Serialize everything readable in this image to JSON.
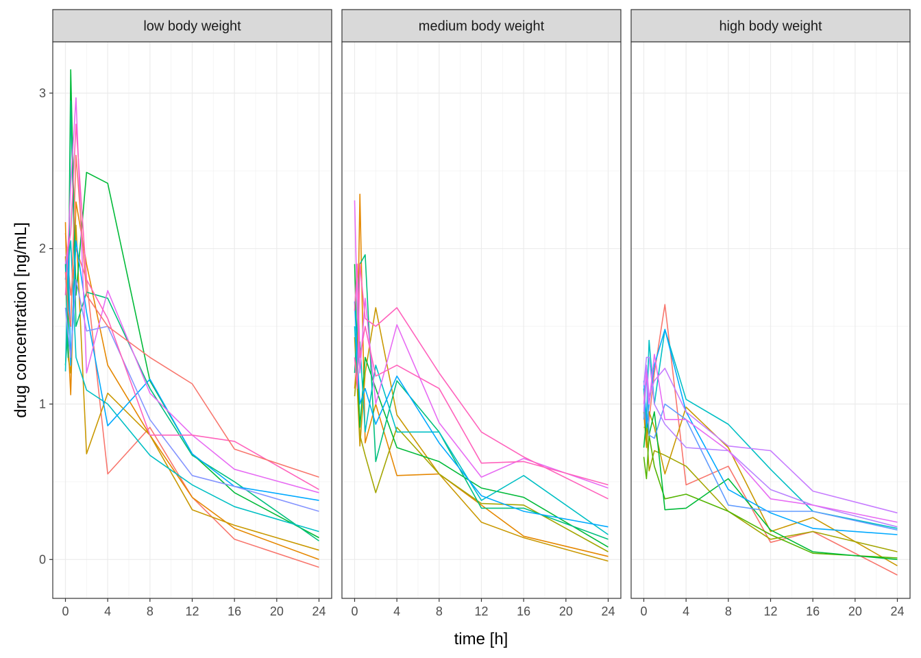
{
  "chart_data": {
    "type": "line",
    "xlabel": "time [h]",
    "ylabel": "drug concentration [ng/mL]",
    "xlim": [
      -1.2,
      25.2
    ],
    "ylim": [
      -0.25,
      3.33
    ],
    "x_ticks": [
      0,
      4,
      8,
      12,
      16,
      20,
      24
    ],
    "y_ticks": [
      0,
      1,
      2,
      3
    ],
    "grid": true,
    "legend": "none",
    "panels": [
      {
        "title": "low body weight",
        "series": [
          {
            "color": "#F8766D",
            "x": [
              0,
              0.25,
              0.5,
              1,
              2,
              4,
              8,
              12,
              16,
              24
            ],
            "y": [
              2.1,
              1.9,
              1.7,
              2.0,
              1.8,
              0.55,
              0.85,
              0.4,
              0.13,
              -0.05
            ]
          },
          {
            "color": "#E58700",
            "x": [
              0,
              0.25,
              0.5,
              1,
              2,
              4,
              8,
              12,
              16,
              24
            ],
            "y": [
              2.17,
              1.4,
              1.06,
              2.3,
              1.9,
              1.25,
              0.8,
              0.4,
              0.2,
              0.0
            ]
          },
          {
            "color": "#C99800",
            "x": [
              0,
              0.25,
              0.5,
              1,
              2,
              4,
              8,
              12,
              16,
              24
            ],
            "y": [
              1.95,
              1.3,
              1.2,
              2.15,
              0.68,
              1.07,
              0.8,
              0.32,
              0.22,
              0.06
            ]
          },
          {
            "color": "#00BA38",
            "x": [
              0,
              0.25,
              0.5,
              1,
              2,
              4,
              8,
              12,
              16,
              24
            ],
            "y": [
              1.25,
              1.5,
              3.15,
              1.7,
              2.49,
              2.42,
              1.15,
              0.68,
              0.43,
              0.14
            ]
          },
          {
            "color": "#00BF7D",
            "x": [
              0,
              0.25,
              0.5,
              1,
              2,
              4,
              8,
              12,
              16,
              24
            ],
            "y": [
              1.9,
              1.3,
              2.95,
              1.5,
              1.72,
              1.68,
              1.1,
              0.67,
              0.5,
              0.12
            ]
          },
          {
            "color": "#00BFC4",
            "x": [
              0,
              0.25,
              0.5,
              1,
              2,
              4,
              8,
              12,
              16,
              24
            ],
            "y": [
              1.21,
              1.9,
              2.05,
              1.3,
              1.09,
              1.0,
              0.67,
              0.48,
              0.34,
              0.18
            ]
          },
          {
            "color": "#00A9FF",
            "x": [
              0,
              0.25,
              0.5,
              1,
              2,
              4,
              8,
              12,
              16,
              24
            ],
            "y": [
              1.8,
              2.02,
              1.25,
              2.05,
              1.59,
              0.86,
              1.16,
              0.68,
              0.47,
              0.38
            ]
          },
          {
            "color": "#8494FF",
            "x": [
              0,
              0.25,
              0.5,
              1,
              2,
              4,
              8,
              12,
              16,
              24
            ],
            "y": [
              1.62,
              1.45,
              1.3,
              1.8,
              1.47,
              1.5,
              0.9,
              0.54,
              0.47,
              0.31
            ]
          },
          {
            "color": "#E76BF3",
            "x": [
              0,
              0.25,
              0.5,
              1,
              2,
              4,
              8,
              12,
              16,
              24
            ],
            "y": [
              1.9,
              2.02,
              2.42,
              2.97,
              1.2,
              1.73,
              1.07,
              0.8,
              0.58,
              0.43
            ]
          },
          {
            "color": "#FF62BC",
            "x": [
              0,
              0.25,
              0.5,
              1,
              2,
              4,
              8,
              12,
              16,
              24
            ],
            "y": [
              1.7,
              2.0,
              2.1,
              2.8,
              1.8,
              1.55,
              0.8,
              0.8,
              0.76,
              0.45
            ]
          },
          {
            "color": "#F8766D",
            "x": [
              0,
              0.25,
              0.5,
              1,
              2,
              4,
              8,
              12,
              16,
              24
            ],
            "y": [
              1.85,
              1.6,
              1.5,
              2.6,
              1.7,
              1.5,
              1.3,
              1.13,
              0.71,
              0.53
            ]
          }
        ]
      },
      {
        "title": "medium body weight",
        "series": [
          {
            "color": "#E58700",
            "x": [
              0,
              0.25,
              0.5,
              1,
              2,
              4,
              8,
              12,
              16,
              24
            ],
            "y": [
              1.1,
              1.3,
              2.35,
              0.75,
              1.0,
              0.54,
              0.55,
              0.35,
              0.15,
              0.02
            ]
          },
          {
            "color": "#C99800",
            "x": [
              0,
              0.25,
              0.5,
              1,
              2,
              4,
              8,
              12,
              16,
              24
            ],
            "y": [
              1.43,
              1.1,
              0.73,
              1.2,
              1.62,
              0.93,
              0.55,
              0.24,
              0.14,
              -0.01
            ]
          },
          {
            "color": "#A3A500",
            "x": [
              0,
              0.25,
              0.5,
              1,
              2,
              4,
              8,
              12,
              16,
              24
            ],
            "y": [
              1.05,
              1.25,
              0.8,
              0.67,
              0.43,
              0.85,
              0.55,
              0.36,
              0.35,
              0.05
            ]
          },
          {
            "color": "#00BA38",
            "x": [
              0,
              0.25,
              0.5,
              1,
              2,
              4,
              8,
              12,
              16,
              24
            ],
            "y": [
              1.9,
              1.3,
              0.85,
              1.3,
              1.1,
              0.72,
              0.63,
              0.46,
              0.4,
              0.08
            ]
          },
          {
            "color": "#00BF7D",
            "x": [
              0,
              0.25,
              0.5,
              1,
              2,
              4,
              8,
              12,
              16,
              24
            ],
            "y": [
              1.2,
              1.5,
              1.9,
              1.96,
              0.63,
              1.15,
              0.82,
              0.33,
              0.33,
              0.13
            ]
          },
          {
            "color": "#00BFC4",
            "x": [
              0,
              0.25,
              0.5,
              1,
              2,
              4,
              8,
              12,
              16,
              24
            ],
            "y": [
              1.5,
              1.2,
              1.4,
              0.82,
              1.25,
              0.82,
              0.82,
              0.38,
              0.54,
              0.16
            ]
          },
          {
            "color": "#00A9FF",
            "x": [
              0,
              0.25,
              0.5,
              1,
              2,
              4,
              8,
              12,
              16,
              24
            ],
            "y": [
              1.66,
              1.3,
              1.0,
              1.1,
              0.87,
              1.18,
              0.75,
              0.41,
              0.31,
              0.21
            ]
          },
          {
            "color": "#E76BF3",
            "x": [
              0,
              0.25,
              0.5,
              1,
              2,
              4,
              8,
              12,
              16,
              24
            ],
            "y": [
              2.31,
              1.6,
              1.2,
              1.68,
              1.0,
              1.51,
              0.88,
              0.53,
              0.65,
              0.46
            ]
          },
          {
            "color": "#FF62BC",
            "x": [
              0,
              0.25,
              0.5,
              1,
              2,
              4,
              8,
              12,
              16,
              24
            ],
            "y": [
              1.6,
              1.9,
              1.3,
              1.5,
              1.18,
              1.25,
              1.1,
              0.62,
              0.63,
              0.48
            ]
          },
          {
            "color": "#FF62BC",
            "x": [
              0,
              0.25,
              0.5,
              1,
              2,
              4,
              8,
              12,
              16,
              24
            ],
            "y": [
              1.3,
              1.1,
              1.9,
              1.55,
              1.5,
              1.62,
              1.2,
              0.82,
              0.66,
              0.39
            ]
          }
        ]
      },
      {
        "title": "high body weight",
        "series": [
          {
            "color": "#F8766D",
            "x": [
              0,
              0.25,
              0.5,
              1,
              2,
              4,
              8,
              12,
              16,
              24
            ],
            "y": [
              1.1,
              0.75,
              0.9,
              1.2,
              1.64,
              0.48,
              0.6,
              0.11,
              0.18,
              -0.1
            ]
          },
          {
            "color": "#C99800",
            "x": [
              0,
              0.25,
              0.5,
              1,
              2,
              4,
              8,
              12,
              16,
              24
            ],
            "y": [
              0.95,
              0.72,
              0.95,
              0.85,
              0.55,
              0.98,
              0.72,
              0.18,
              0.27,
              -0.04
            ]
          },
          {
            "color": "#A3A500",
            "x": [
              0,
              0.25,
              0.5,
              1,
              2,
              4,
              8,
              12,
              16,
              24
            ],
            "y": [
              0.85,
              0.85,
              0.57,
              0.7,
              0.67,
              0.6,
              0.31,
              0.13,
              0.18,
              0.05
            ]
          },
          {
            "color": "#53B400",
            "x": [
              0,
              0.25,
              0.5,
              1,
              2,
              4,
              8,
              12,
              16,
              24
            ],
            "y": [
              0.66,
              0.52,
              0.8,
              0.6,
              0.39,
              0.42,
              0.31,
              0.16,
              0.04,
              0.01
            ]
          },
          {
            "color": "#00BA38",
            "x": [
              0,
              0.25,
              0.5,
              1,
              2,
              4,
              8,
              12,
              16,
              24
            ],
            "y": [
              0.72,
              0.9,
              0.8,
              0.95,
              0.32,
              0.33,
              0.52,
              0.19,
              0.05,
              0.0
            ]
          },
          {
            "color": "#00BFC4",
            "x": [
              0,
              0.25,
              0.5,
              1,
              2,
              4,
              8,
              12,
              16,
              24
            ],
            "y": [
              1.1,
              0.9,
              1.41,
              1.0,
              1.48,
              1.03,
              0.87,
              0.58,
              0.31,
              0.2
            ]
          },
          {
            "color": "#00A9FF",
            "x": [
              0,
              0.25,
              0.5,
              1,
              2,
              4,
              8,
              12,
              16,
              24
            ],
            "y": [
              1.15,
              0.85,
              1.0,
              1.25,
              1.48,
              0.95,
              0.45,
              0.3,
              0.2,
              0.16
            ]
          },
          {
            "color": "#619CFF",
            "x": [
              0,
              0.25,
              0.5,
              1,
              2,
              4,
              8,
              12,
              16,
              24
            ],
            "y": [
              0.9,
              1.2,
              0.8,
              0.78,
              1.0,
              0.9,
              0.35,
              0.31,
              0.31,
              0.19
            ]
          },
          {
            "color": "#B983FF",
            "x": [
              0,
              0.25,
              0.5,
              1,
              2,
              4,
              8,
              12,
              16,
              24
            ],
            "y": [
              1.12,
              1.3,
              1.3,
              1.0,
              0.87,
              0.72,
              0.7,
              0.45,
              0.35,
              0.21
            ]
          },
          {
            "color": "#C77CFF",
            "x": [
              0,
              0.25,
              0.5,
              1,
              2,
              4,
              8,
              12,
              16,
              24
            ],
            "y": [
              0.95,
              1.25,
              1.05,
              1.15,
              1.23,
              0.95,
              0.73,
              0.7,
              0.44,
              0.3
            ]
          },
          {
            "color": "#E76BF3",
            "x": [
              0,
              0.25,
              0.5,
              1,
              2,
              4,
              8,
              12,
              16,
              24
            ],
            "y": [
              1.0,
              1.2,
              1.0,
              1.32,
              0.9,
              0.9,
              0.7,
              0.39,
              0.35,
              0.24
            ]
          }
        ]
      }
    ]
  }
}
